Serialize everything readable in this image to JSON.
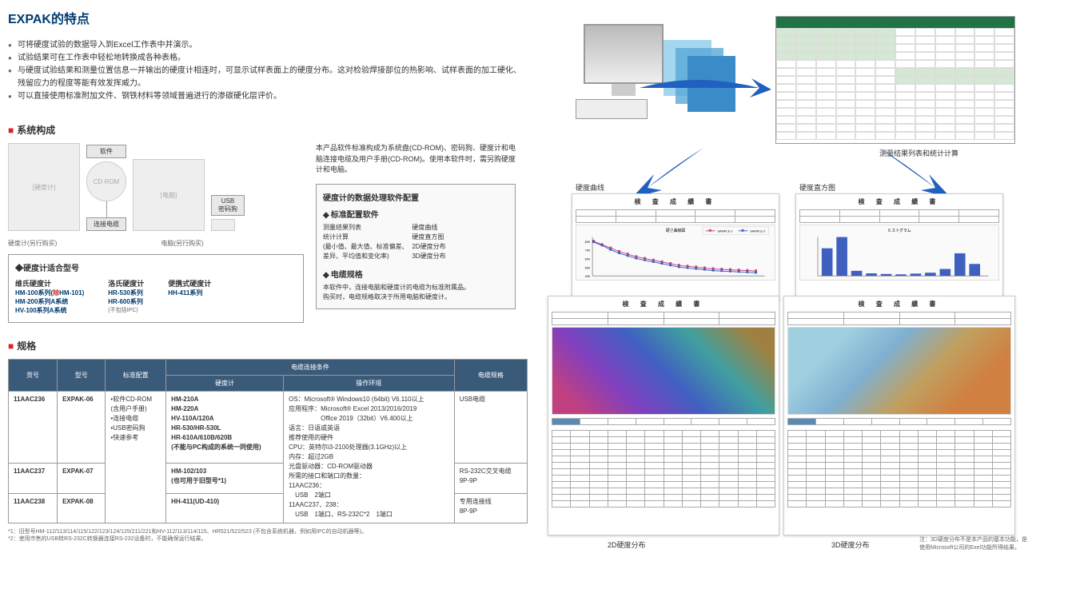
{
  "title": "EXPAK的特点",
  "features": [
    "可将硬度试验的数据导入到Excel工作表中并演示。",
    "试验结果可在工作表中轻松地转换成各种表格。",
    "与硬度试验结果和测量位置信息一并输出的硬度计相连时，可显示试样表面上的硬度分布。这对检验焊接部位的热影响、试样表面的加工硬化、残留应力的程度等能有效发挥威力。",
    "可以直接使用标准附加文件、钢铁材料等领域普遍进行的渗碳硬化层评价。"
  ],
  "system_header": "系统构成",
  "diagram": {
    "software_label": "软件",
    "cdrom": "CD ROM",
    "usb_label": "USB\n密码狗",
    "cable_label": "连接电缆",
    "hw_left": "硬度计(另行购买)",
    "hw_right": "电脑(另行购买)"
  },
  "compat": {
    "title": "◆硬度计适合型号",
    "cols": [
      {
        "lbl": "维氏硬度计",
        "models": "HM-100系列(<span class='red'>除</span>HM-101)\nHM-200系列A系统\nHV-100系列A系统"
      },
      {
        "lbl": "洛氏硬度计",
        "models": "HR-530系列\nHR-600系列",
        "note": "(不包括IPC)"
      },
      {
        "lbl": "便携式硬度计",
        "models": "HH-411系列"
      }
    ]
  },
  "config": {
    "desc": "本产品软件标准构成为系统盘(CD-ROM)、密码狗、硬度计和电脑连接电缆及用户手册(CD-ROM)。使用本软件时，需另购硬度计和电脑。",
    "box_title": "硬度计的数据处理软件配置",
    "sub1": "标准配置软件",
    "rows1": [
      {
        "l": "测量结果列表",
        "r": "硬度曲线"
      },
      {
        "l": "统计计算",
        "r": "硬度直方图"
      },
      {
        "l": "(最小值、最大值、标准偏差、",
        "r": "2D硬度分布"
      },
      {
        "l": "差异、平均值和变化率)",
        "r": "3D硬度分布"
      }
    ],
    "sub2": "电缆规格",
    "cable_desc": "本软件中，连接电脑和硬度计的电缆为标准附属品。\n购买时，电缆规格取决于所用电脑和硬度计。"
  },
  "spec_header": "规格",
  "spec_table": {
    "headers": [
      "货号",
      "型号",
      "标准配置",
      "硬度计",
      "操作环境",
      "电缆规格"
    ],
    "header_group": "电缆连接条件",
    "rows": [
      {
        "code": "11AAC236",
        "model": "EXPAK-06",
        "config_rowspan": true,
        "config": "•软件CD-ROM\n(含用户手册)\n•连接电缆\n•USB密码狗\n•快速参考",
        "tester": "HM-210A\nHM-220A\nHV-110A/120A\nHR-530/HR-530L\nHR-610A/610B/620B\n(不能与PC构成的系统一同使用)",
        "env_rowspan": true,
        "env": "OS：Microsoft® Windows10 (64bit) V6.110以上\n应用程序：Microsoft® Excel 2013/2016/2019\n　　　　　Office 2019（32bit）V6.400以上\n语言：日语或英语\n推荐使用的硬件\nCPU：英特尔i3-2100处理器(3.1GHz)以上\n内存：超过2GB\n光盘驱动器：CD-ROM驱动器\n所需的接口和端口的数量：\n11AAC236：\n　USB　2端口\n11AAC237、238：\n　USB　1端口、RS-232C*2　1端口",
        "cable": "USB电缆"
      },
      {
        "code": "11AAC237",
        "model": "EXPAK-07",
        "tester": "HM-102/103\n(也可用于旧型号*1)",
        "cable": "RS-232C交叉电缆\n9P-9P"
      },
      {
        "code": "11AAC238",
        "model": "EXPAK-08",
        "tester": "HH-411(UD-410)",
        "cable": "专用连接线\n8P-9P"
      }
    ]
  },
  "footnotes": [
    "*1：旧型号HM-112/113/114/115/122/123/124/125/211/221和HV-112/113/114/115、HR521/522/523 (不包含系统机器，例如用IPC的自动机器等)。",
    "*2：使用市售的USB转RS-232C转换器连接RS-232设备时，不能确保运行结果。"
  ],
  "right": {
    "excel_label": "测量结果列表和统计计算",
    "curve_label": "硬度曲线",
    "hist_label": "硬度直方图",
    "d2_label": "2D硬度分布",
    "d3_label": "3D硬度分布",
    "note": "注：3D硬度分布不是本产品的基本功能，是使用Microsoft公司的Exel功能所得结果。",
    "report_title": "検 査 成 績 書",
    "curve_legend": [
      "SAMPLE-1",
      "SAMPLE-2"
    ],
    "curve_data": {
      "s1": [
        800,
        760,
        720,
        680,
        650,
        620,
        600,
        580,
        560,
        540,
        520,
        510,
        500,
        490,
        480,
        475,
        470,
        465,
        460,
        455
      ],
      "s2": [
        790,
        750,
        700,
        660,
        630,
        600,
        580,
        560,
        540,
        520,
        500,
        490,
        480,
        470,
        460,
        455,
        450,
        445,
        440,
        435
      ],
      "ylim": [
        400,
        850
      ],
      "colors": [
        "#c04080",
        "#4060c0"
      ]
    },
    "hist_data": {
      "title": "ヒストグラム",
      "values": [
        220,
        310,
        40,
        20,
        15,
        12,
        18,
        25,
        55,
        180,
        95
      ],
      "color": "#4060c0"
    }
  }
}
